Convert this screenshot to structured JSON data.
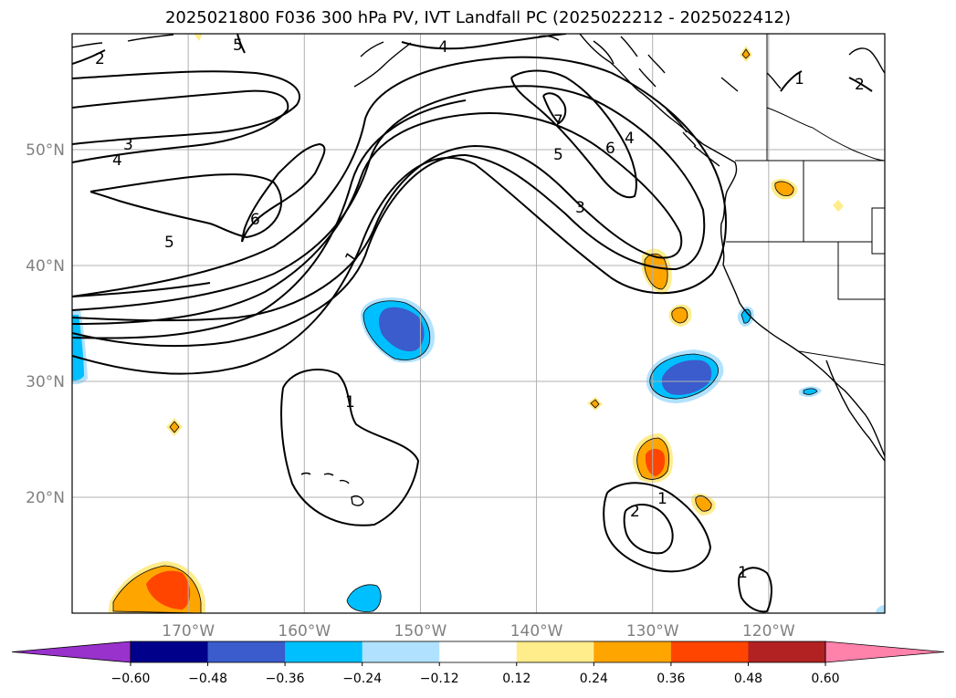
{
  "title": "2025021800 F036 300 hPa PV, IVT Landfall PC (2025022212 - 2025022412)",
  "map": {
    "lon_range": [
      -180,
      -110
    ],
    "lat_range": [
      10,
      60
    ],
    "lat_ticks": [
      {
        "value": 20,
        "label": "20°N"
      },
      {
        "value": 30,
        "label": "30°N"
      },
      {
        "value": 40,
        "label": "40°N"
      },
      {
        "value": 50,
        "label": "50°N"
      }
    ],
    "lon_ticks": [
      {
        "value": -170,
        "label": "170°W"
      },
      {
        "value": -160,
        "label": "160°W"
      },
      {
        "value": -150,
        "label": "150°W"
      },
      {
        "value": -140,
        "label": "140°W"
      },
      {
        "value": -130,
        "label": "130°W"
      },
      {
        "value": -120,
        "label": "120°W"
      }
    ],
    "gridlines": true,
    "pv_contour_labels": [
      "1",
      "2",
      "3",
      "4",
      "5",
      "6",
      "7"
    ]
  },
  "colorbar": {
    "ticks": [
      "−0.60",
      "−0.48",
      "−0.36",
      "−0.24",
      "−0.12",
      "0.12",
      "0.24",
      "0.36",
      "0.48",
      "0.60"
    ],
    "bins": [
      {
        "range": [
          -0.6,
          -0.48
        ],
        "color": "#00008b"
      },
      {
        "range": [
          -0.48,
          -0.36
        ],
        "color": "#3a5ccc"
      },
      {
        "range": [
          -0.36,
          -0.24
        ],
        "color": "#00bfff"
      },
      {
        "range": [
          -0.24,
          -0.12
        ],
        "color": "#b0e2ff"
      },
      {
        "range": [
          -0.12,
          0.12
        ],
        "color": "#ffffff"
      },
      {
        "range": [
          0.12,
          0.24
        ],
        "color": "#ffec8b"
      },
      {
        "range": [
          0.24,
          0.36
        ],
        "color": "#ffa500"
      },
      {
        "range": [
          0.36,
          0.48
        ],
        "color": "#ff4500"
      },
      {
        "range": [
          0.48,
          0.6
        ],
        "color": "#b22222"
      }
    ],
    "under_color": "#9932cc",
    "over_color": "#ff82ab"
  }
}
